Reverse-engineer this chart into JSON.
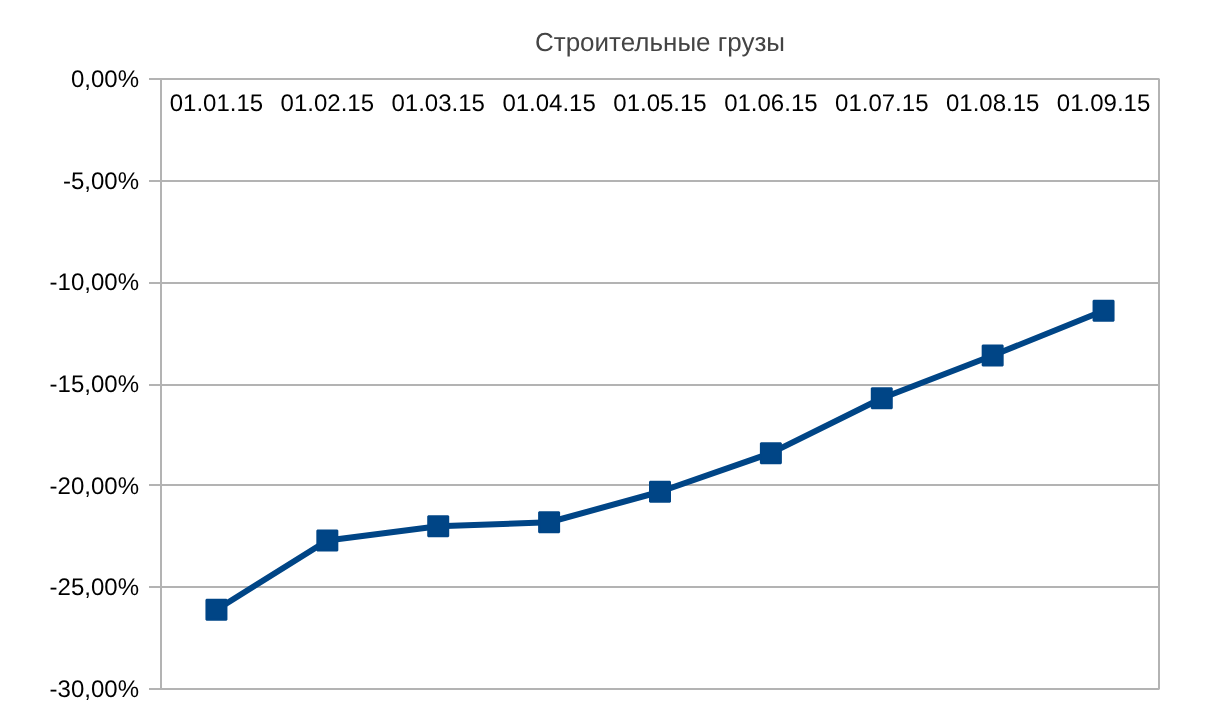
{
  "chart_data": {
    "type": "line",
    "title": "Строительные грузы",
    "categories": [
      "01.01.15",
      "01.02.15",
      "01.03.15",
      "01.04.15",
      "01.05.15",
      "01.06.15",
      "01.07.15",
      "01.08.15",
      "01.09.15"
    ],
    "series": [
      {
        "color": "#004586",
        "values": [
          -26.1,
          -22.7,
          -22.0,
          -21.8,
          -20.3,
          -18.4,
          -15.7,
          -13.6,
          -11.4
        ]
      }
    ],
    "ylim": [
      -30,
      0
    ],
    "yticks": [
      {
        "value": 0,
        "label": "0,00%"
      },
      {
        "value": -5,
        "label": "-5,00%"
      },
      {
        "value": -10,
        "label": "-10,00%"
      },
      {
        "value": -15,
        "label": "-15,00%"
      },
      {
        "value": -20,
        "label": "-20,00%"
      },
      {
        "value": -25,
        "label": "-25,00%"
      },
      {
        "value": -30,
        "label": "-30,00%"
      }
    ],
    "grid": "y",
    "marker": "square",
    "line_style": "solid"
  }
}
